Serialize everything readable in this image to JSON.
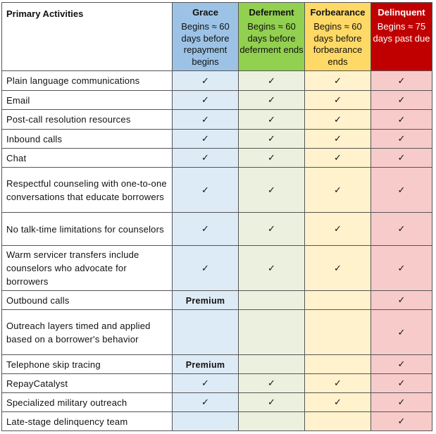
{
  "header": {
    "activities_label": "Primary Activities",
    "phases": [
      {
        "key": "grace",
        "title": "Grace",
        "desc": "Begins ≈ 60 days before repayment begins"
      },
      {
        "key": "deferment",
        "title": "Deferment",
        "desc": "Begins ≈ 60 days before deferment ends"
      },
      {
        "key": "forbearance",
        "title": "Forbearance",
        "desc": "Begins ≈ 60 days before forbearance ends"
      },
      {
        "key": "delinquent",
        "title": "Delinquent",
        "desc": "Begins ≈ 75 days past due"
      }
    ]
  },
  "rows": [
    {
      "activity": "Plain language communications",
      "cells": [
        "✓",
        "✓",
        "✓",
        "✓"
      ]
    },
    {
      "activity": "Email",
      "cells": [
        "✓",
        "✓",
        "✓",
        "✓"
      ]
    },
    {
      "activity": "Post-call resolution resources",
      "cells": [
        "✓",
        "✓",
        "✓",
        "✓"
      ]
    },
    {
      "activity": "Inbound calls",
      "cells": [
        "✓",
        "✓",
        "✓",
        "✓"
      ]
    },
    {
      "activity": "Chat",
      "cells": [
        "✓",
        "✓",
        "✓",
        "✓"
      ]
    },
    {
      "activity": "Respectful counseling with one-to-one conversations that educate borrowers",
      "cells": [
        "✓",
        "✓",
        "✓",
        "✓"
      ]
    },
    {
      "activity": "No talk-time limitations for counselors",
      "cells": [
        "✓",
        "✓",
        "✓",
        "✓"
      ]
    },
    {
      "activity": "Warm servicer transfers include counselors who advocate for borrowers",
      "cells": [
        "✓",
        "✓",
        "✓",
        "✓"
      ]
    },
    {
      "activity": "Outbound calls",
      "cells": [
        "Premium",
        "",
        "",
        "✓"
      ]
    },
    {
      "activity": "Outreach layers timed and applied based on a borrower's behavior",
      "cells": [
        "",
        "",
        "",
        "✓"
      ]
    },
    {
      "activity": "Telephone skip tracing",
      "cells": [
        "Premium",
        "",
        "",
        "✓"
      ]
    },
    {
      "activity": "RepayCatalyst",
      "cells": [
        "✓",
        "✓",
        "✓",
        "✓"
      ]
    },
    {
      "activity": "Specialized military outreach",
      "cells": [
        "✓",
        "✓",
        "✓",
        "✓"
      ]
    },
    {
      "activity": "Late-stage delinquency team",
      "cells": [
        "",
        "",
        "",
        "✓"
      ]
    }
  ],
  "colors": {
    "grace_header": "#9cc3e6",
    "deferment_header": "#92d050",
    "forbearance_header": "#ffd966",
    "delinquent_header": "#c00000",
    "grace_cell": "#ddebf7",
    "deferment_cell": "#ebf1de",
    "forbearance_cell": "#fff2cc",
    "delinquent_cell": "#f8cbcb"
  }
}
